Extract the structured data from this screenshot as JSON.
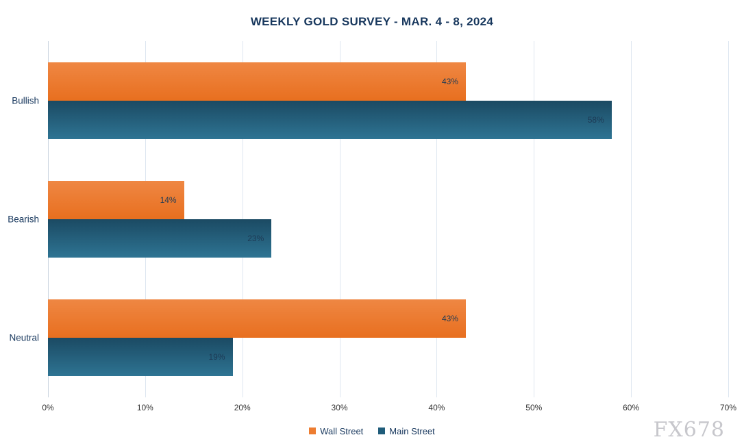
{
  "watermark": "FX678",
  "chart_data": {
    "type": "bar",
    "orientation": "horizontal",
    "title": "WEEKLY GOLD SURVEY - MAR. 4 - 8, 2024",
    "categories": [
      "Bullish",
      "Bearish",
      "Neutral"
    ],
    "series": [
      {
        "name": "Wall Street",
        "key": "wall-street",
        "values": [
          43,
          14,
          43
        ],
        "color": "#ED7D31",
        "gradient_top": "#EF8743",
        "gradient_bottom": "#E86F1F"
      },
      {
        "name": "Main Street",
        "key": "main-street",
        "values": [
          58,
          23,
          19
        ],
        "color": "#1F5C7A",
        "gradient_top": "#1B4A63",
        "gradient_bottom": "#2E7493"
      }
    ],
    "value_suffix": "%",
    "xlim": [
      0,
      70
    ],
    "tick_values": [
      0,
      10,
      20,
      30,
      40,
      50,
      60,
      70
    ],
    "tick_labels": [
      "0%",
      "10%",
      "20%",
      "30%",
      "40%",
      "50%",
      "60%",
      "70%"
    ],
    "grid": true,
    "legend_position": "bottom"
  }
}
